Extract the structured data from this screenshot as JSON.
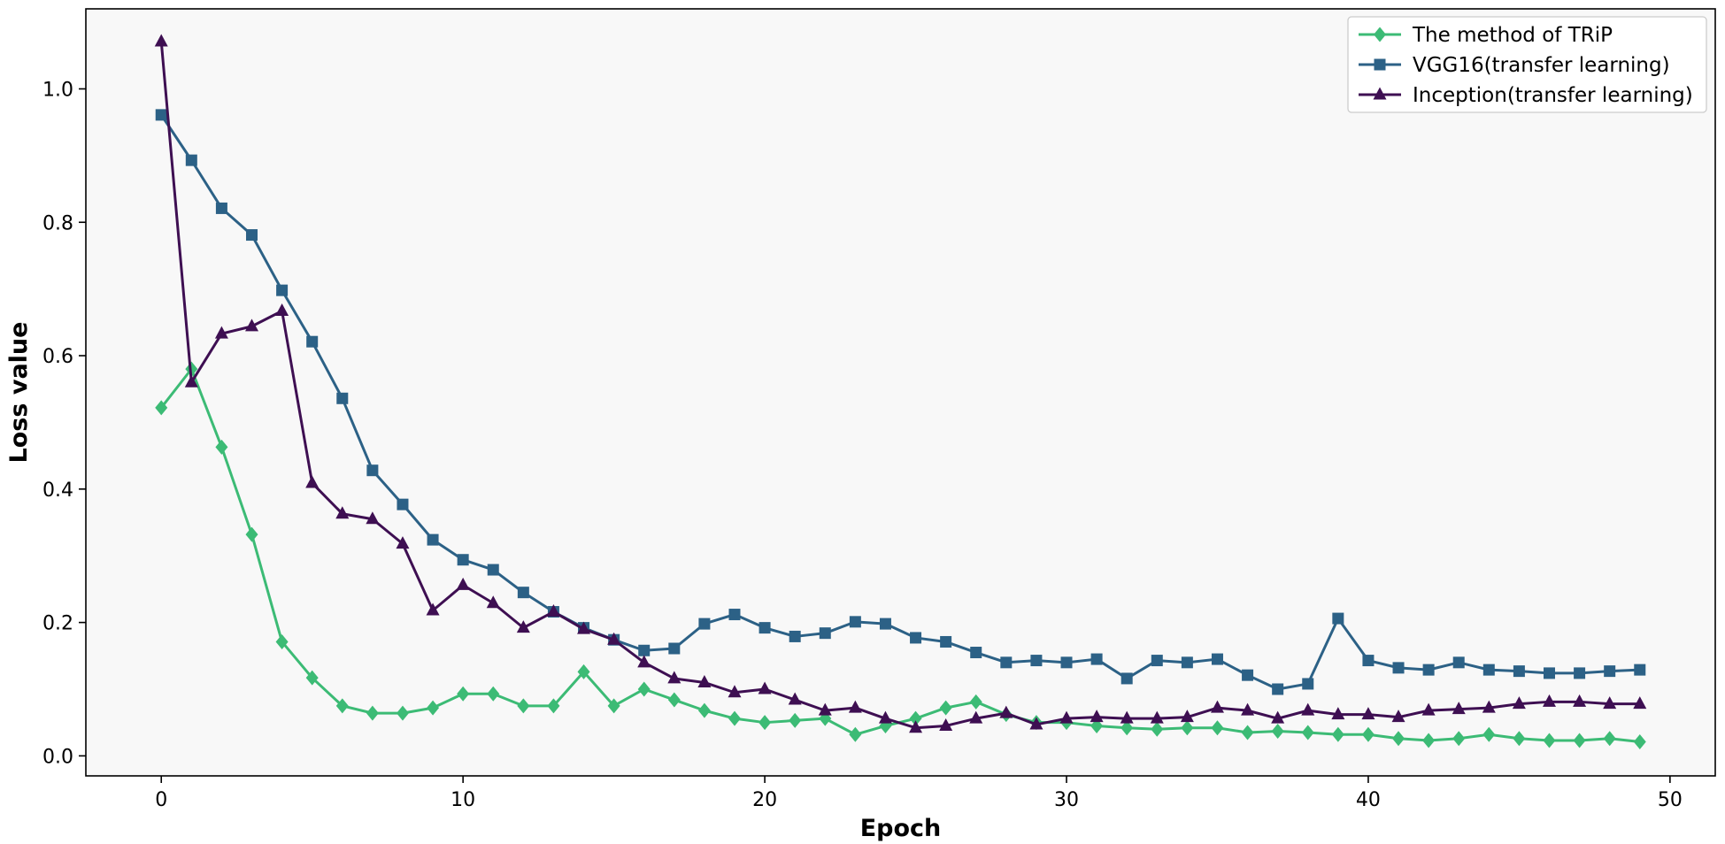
{
  "chart_data": {
    "type": "line",
    "xlabel": "Epoch",
    "ylabel": "Loss value",
    "xlim": [
      -2.5,
      51.5
    ],
    "ylim": [
      -0.03,
      1.12
    ],
    "xticks": [
      0,
      10,
      20,
      30,
      40,
      50
    ],
    "yticks": [
      0.0,
      0.2,
      0.4,
      0.6,
      0.8,
      1.0
    ],
    "ytick_labels": [
      "0.0",
      "0.2",
      "0.4",
      "0.6",
      "0.8",
      "1.0"
    ],
    "grid": false,
    "legend_position": "top-right",
    "background": "#f8f8f8",
    "x": [
      0,
      1,
      2,
      3,
      4,
      5,
      6,
      7,
      8,
      9,
      10,
      11,
      12,
      13,
      14,
      15,
      16,
      17,
      18,
      19,
      20,
      21,
      22,
      23,
      24,
      25,
      26,
      27,
      28,
      29,
      30,
      31,
      32,
      33,
      34,
      35,
      36,
      37,
      38,
      39,
      40,
      41,
      42,
      43,
      44,
      45,
      46,
      47,
      48,
      49
    ],
    "series": [
      {
        "name": "The method of TRiP",
        "color": "#3cbb75",
        "marker": "diamond",
        "values": [
          0.522,
          0.58,
          0.463,
          0.332,
          0.171,
          0.117,
          0.075,
          0.064,
          0.064,
          0.072,
          0.093,
          0.093,
          0.075,
          0.075,
          0.126,
          0.075,
          0.1,
          0.084,
          0.068,
          0.056,
          0.05,
          0.053,
          0.056,
          0.032,
          0.045,
          0.056,
          0.072,
          0.081,
          0.062,
          0.05,
          0.05,
          0.045,
          0.042,
          0.04,
          0.042,
          0.042,
          0.035,
          0.037,
          0.035,
          0.032,
          0.032,
          0.026,
          0.023,
          0.026,
          0.032,
          0.026,
          0.023,
          0.023,
          0.026,
          0.021
        ]
      },
      {
        "name": "VGG16(transfer learning)",
        "color": "#2c6186",
        "marker": "square",
        "values": [
          0.961,
          0.893,
          0.821,
          0.781,
          0.698,
          0.621,
          0.536,
          0.428,
          0.377,
          0.324,
          0.294,
          0.279,
          0.245,
          0.216,
          0.192,
          0.174,
          0.158,
          0.161,
          0.198,
          0.212,
          0.192,
          0.179,
          0.184,
          0.201,
          0.198,
          0.177,
          0.171,
          0.155,
          0.14,
          0.143,
          0.14,
          0.145,
          0.116,
          0.143,
          0.14,
          0.145,
          0.121,
          0.1,
          0.108,
          0.206,
          0.143,
          0.132,
          0.129,
          0.14,
          0.129,
          0.127,
          0.124,
          0.124,
          0.127,
          0.129
        ]
      },
      {
        "name": "Inception(transfer learning)",
        "color": "#3e0f52",
        "marker": "triangle",
        "values": [
          1.071,
          0.56,
          0.633,
          0.644,
          0.667,
          0.409,
          0.363,
          0.355,
          0.318,
          0.218,
          0.256,
          0.229,
          0.192,
          0.216,
          0.19,
          0.174,
          0.14,
          0.116,
          0.11,
          0.095,
          0.1,
          0.084,
          0.068,
          0.072,
          0.056,
          0.042,
          0.045,
          0.056,
          0.064,
          0.047,
          0.056,
          0.058,
          0.056,
          0.056,
          0.058,
          0.072,
          0.068,
          0.056,
          0.068,
          0.062,
          0.062,
          0.058,
          0.068,
          0.07,
          0.072,
          0.078,
          0.081,
          0.081,
          0.078,
          0.078
        ]
      }
    ]
  }
}
